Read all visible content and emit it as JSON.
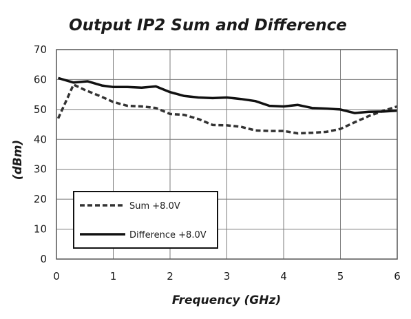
{
  "chart_data": {
    "type": "line",
    "title": "Output IP2 Sum and Difference",
    "xlabel": "Frequency (GHz)",
    "ylabel": "(dBm)",
    "xlim": [
      0,
      6
    ],
    "ylim": [
      0,
      70
    ],
    "x_ticks": [
      0,
      1,
      2,
      3,
      4,
      5,
      6
    ],
    "y_ticks": [
      0,
      10,
      20,
      30,
      40,
      50,
      60,
      70
    ],
    "grid": true,
    "legend_position": "bottom-left",
    "series": [
      {
        "name": "Sum +8.0V",
        "style": "dashed",
        "color": "#333333",
        "x": [
          0.03,
          0.15,
          0.3,
          0.5,
          0.8,
          1.0,
          1.25,
          1.5,
          1.75,
          2.0,
          2.25,
          2.5,
          2.75,
          3.0,
          3.25,
          3.5,
          3.75,
          4.0,
          4.25,
          4.5,
          4.75,
          5.0,
          5.25,
          5.5,
          5.75,
          6.0
        ],
        "y": [
          47.0,
          52.0,
          58.3,
          56.5,
          54.2,
          52.5,
          51.2,
          51.0,
          50.5,
          48.5,
          48.2,
          46.8,
          44.8,
          44.7,
          44.2,
          43.0,
          42.8,
          42.8,
          42.0,
          42.2,
          42.5,
          43.5,
          45.7,
          47.8,
          49.5,
          51.0
        ]
      },
      {
        "name": "Difference +8.0V",
        "style": "solid",
        "color": "#111111",
        "x": [
          0.03,
          0.3,
          0.55,
          0.8,
          1.0,
          1.25,
          1.5,
          1.75,
          2.0,
          2.25,
          2.5,
          2.75,
          3.0,
          3.25,
          3.5,
          3.75,
          4.0,
          4.25,
          4.5,
          4.75,
          5.0,
          5.25,
          5.5,
          5.75,
          6.0
        ],
        "y": [
          60.5,
          59.0,
          59.4,
          58.0,
          57.5,
          57.5,
          57.3,
          57.7,
          55.8,
          54.5,
          54.0,
          53.8,
          54.0,
          53.5,
          52.8,
          51.2,
          51.0,
          51.5,
          50.5,
          50.3,
          50.0,
          48.8,
          49.2,
          49.3,
          49.6
        ]
      }
    ]
  }
}
